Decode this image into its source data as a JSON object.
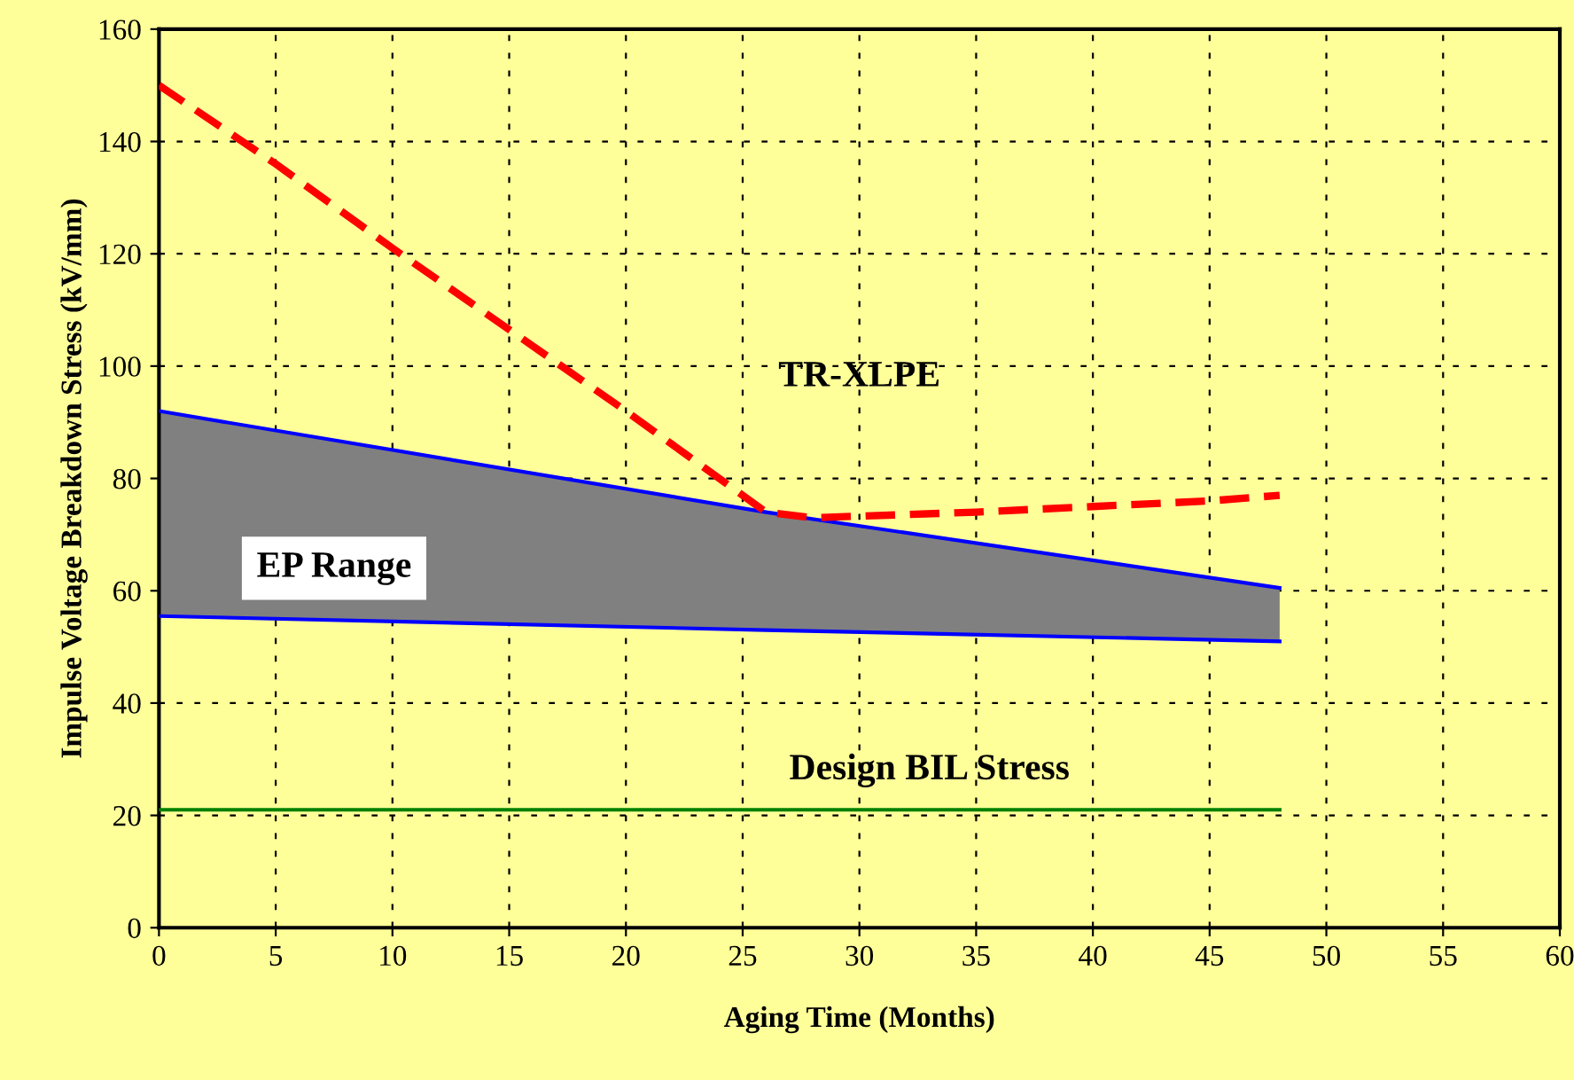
{
  "chart_data": {
    "type": "line",
    "xlabel": "Aging Time (Months)",
    "ylabel": "Impulse Voltage Breakdown Stress (kV/mm)",
    "xlim": [
      0,
      60
    ],
    "xticks": [
      0,
      5,
      10,
      15,
      20,
      25,
      30,
      35,
      40,
      45,
      50,
      55,
      60
    ],
    "ylim": [
      0,
      160
    ],
    "yticks": [
      0,
      20,
      40,
      60,
      80,
      100,
      120,
      140,
      160
    ],
    "grid": true,
    "series": [
      {
        "name": "EP Range",
        "color": "#0000ff",
        "x": [
          0,
          26,
          48
        ],
        "values": [
          55.5,
          53,
          51
        ],
        "lower": [
          55.5,
          53,
          51
        ],
        "upper": [
          92,
          74,
          60.5
        ]
      },
      {
        "color": "#0000ff",
        "x": [
          0,
          26,
          48
        ],
        "values": [
          92,
          74,
          60.5
        ]
      },
      {
        "name": "TR-XLPE",
        "color": "#ff0000",
        "line_style": "dashed",
        "x": [
          0,
          2.5,
          5,
          10,
          20,
          25,
          26,
          28,
          35,
          40,
          45,
          48
        ],
        "values": [
          150,
          143,
          136,
          121,
          92,
          77,
          74,
          73,
          74,
          75,
          76,
          77
        ]
      },
      {
        "name": "Design BIL Stress",
        "color": "#008000",
        "x": [
          0,
          48
        ],
        "values": [
          21,
          21
        ]
      }
    ]
  }
}
